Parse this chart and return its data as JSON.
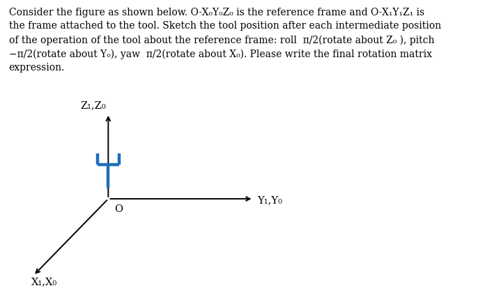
{
  "line1": "Consider the figure as shown below. O-X₀Y₀Z₀ is the reference frame and O-X₁Y₁Z₁ is",
  "line2": "the frame attached to the tool. Sketch the tool position after each intermediate position",
  "line3": "of the operation of the tool about the reference frame: roll  π/2(rotate about Z₀ ), pitch",
  "line4": "−π/2(rotate about Y₀), yaw  π/2(rotate about X₀). Please write the final rotation matrix",
  "line5": "expression.",
  "label_Z": "Z₁,Z₀",
  "label_Y": "Y₁,Y₀",
  "label_X": "X₁,X₀",
  "label_O": "O",
  "axis_color": "#000000",
  "tool_color": "#1e6fba",
  "bg_color": "#ffffff",
  "text_color": "#000000",
  "font_size_text": 10.0,
  "font_size_labels": 10.5,
  "font_size_Z_label": 10.5
}
